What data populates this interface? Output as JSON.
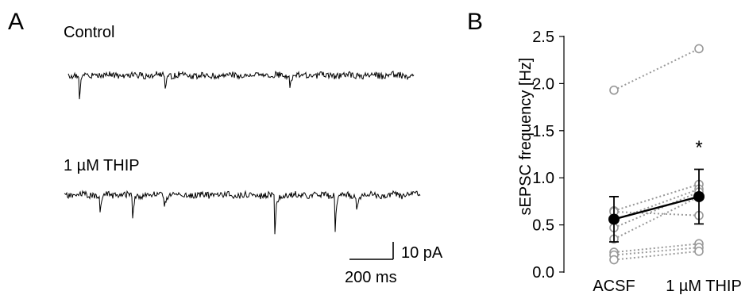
{
  "panel_a": {
    "label": "A",
    "traces": [
      {
        "label": "Control",
        "event_positions": [
          0.03,
          0.28,
          0.64
        ],
        "event_amplitudes": [
          1.0,
          0.35,
          0.5
        ],
        "noise_seed": 3
      },
      {
        "label": "1 µM THIP",
        "event_positions": [
          0.1,
          0.19,
          0.28,
          0.59,
          0.76,
          0.82
        ],
        "event_amplitudes": [
          0.5,
          0.9,
          0.35,
          1.35,
          1.05,
          0.55
        ],
        "noise_seed": 11
      }
    ],
    "scale_bar": {
      "y_label": "10 pA",
      "x_label": "200 ms"
    },
    "colors": {
      "trace": "#000000"
    }
  },
  "panel_b": {
    "label": "B",
    "colors": {
      "individual": "#999999",
      "mean": "#000000"
    },
    "significance": "*"
  },
  "chart_data": {
    "type": "scatter",
    "title": "",
    "xlabel": "",
    "ylabel": "sEPSC frequency [Hz]",
    "categories": [
      "ACSF",
      "1 µM THIP"
    ],
    "ylim": [
      0.0,
      2.5
    ],
    "yticks": [
      "0.0",
      "0.5",
      "1.0",
      "1.5",
      "2.0",
      "2.5"
    ],
    "grid": false,
    "legend": "none",
    "series": [
      {
        "values": [
          1.93,
          2.37
        ]
      },
      {
        "values": [
          0.65,
          0.93
        ]
      },
      {
        "values": [
          0.64,
          0.6
        ]
      },
      {
        "values": [
          0.55,
          0.88
        ]
      },
      {
        "values": [
          0.47,
          0.85
        ]
      },
      {
        "values": [
          0.35,
          0.8
        ]
      },
      {
        "values": [
          0.21,
          0.3
        ]
      },
      {
        "values": [
          0.18,
          0.26
        ]
      },
      {
        "values": [
          0.13,
          0.22
        ]
      }
    ],
    "mean": {
      "values": [
        0.56,
        0.8
      ],
      "sem": [
        0.24,
        0.29
      ]
    },
    "annotations": [
      {
        "text": "*",
        "category": "1 µM THIP",
        "y": 1.37
      }
    ]
  }
}
